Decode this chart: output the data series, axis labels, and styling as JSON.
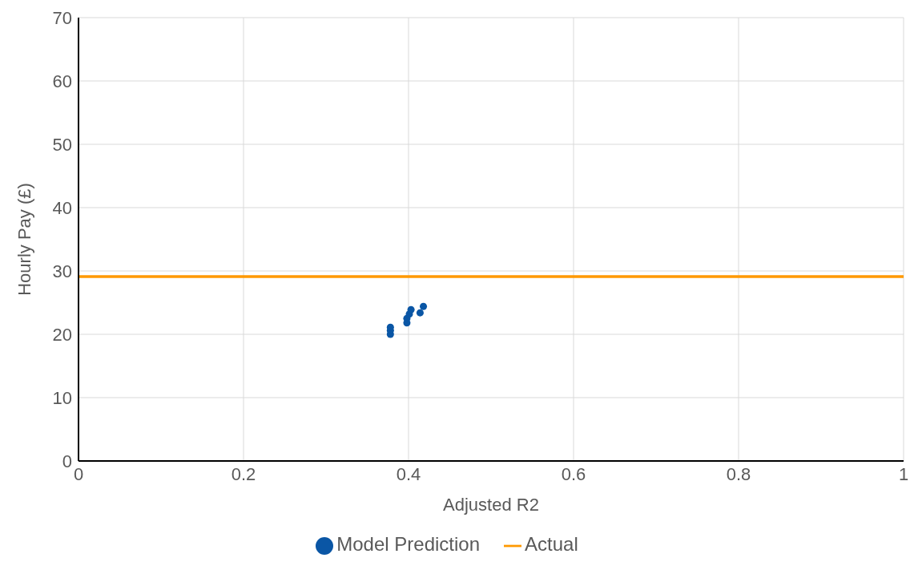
{
  "chart_data": {
    "type": "scatter",
    "xlabel": "Adjusted R2",
    "ylabel": "Hourly Pay (£)",
    "xlim": [
      0,
      1
    ],
    "xticks": [
      0,
      0.2,
      0.4,
      0.6,
      0.8,
      1
    ],
    "ylim": [
      0,
      70
    ],
    "yticks": [
      0,
      10,
      20,
      30,
      40,
      50,
      60,
      70
    ],
    "grid": true,
    "legend": "bottom",
    "series": [
      {
        "name": "Model Prediction",
        "marker": "circle",
        "color": "#0a56a5",
        "x": [
          0.378,
          0.378,
          0.378,
          0.398,
          0.398,
          0.401,
          0.403,
          0.414,
          0.418
        ],
        "values": [
          20.0,
          20.6,
          21.1,
          21.8,
          22.5,
          23.2,
          23.9,
          23.4,
          24.4
        ]
      },
      {
        "name": "Actual",
        "type": "line",
        "marker": "none",
        "color": "#ff9900",
        "x": [
          0,
          1
        ],
        "values": [
          29.1,
          29.1
        ]
      }
    ]
  }
}
